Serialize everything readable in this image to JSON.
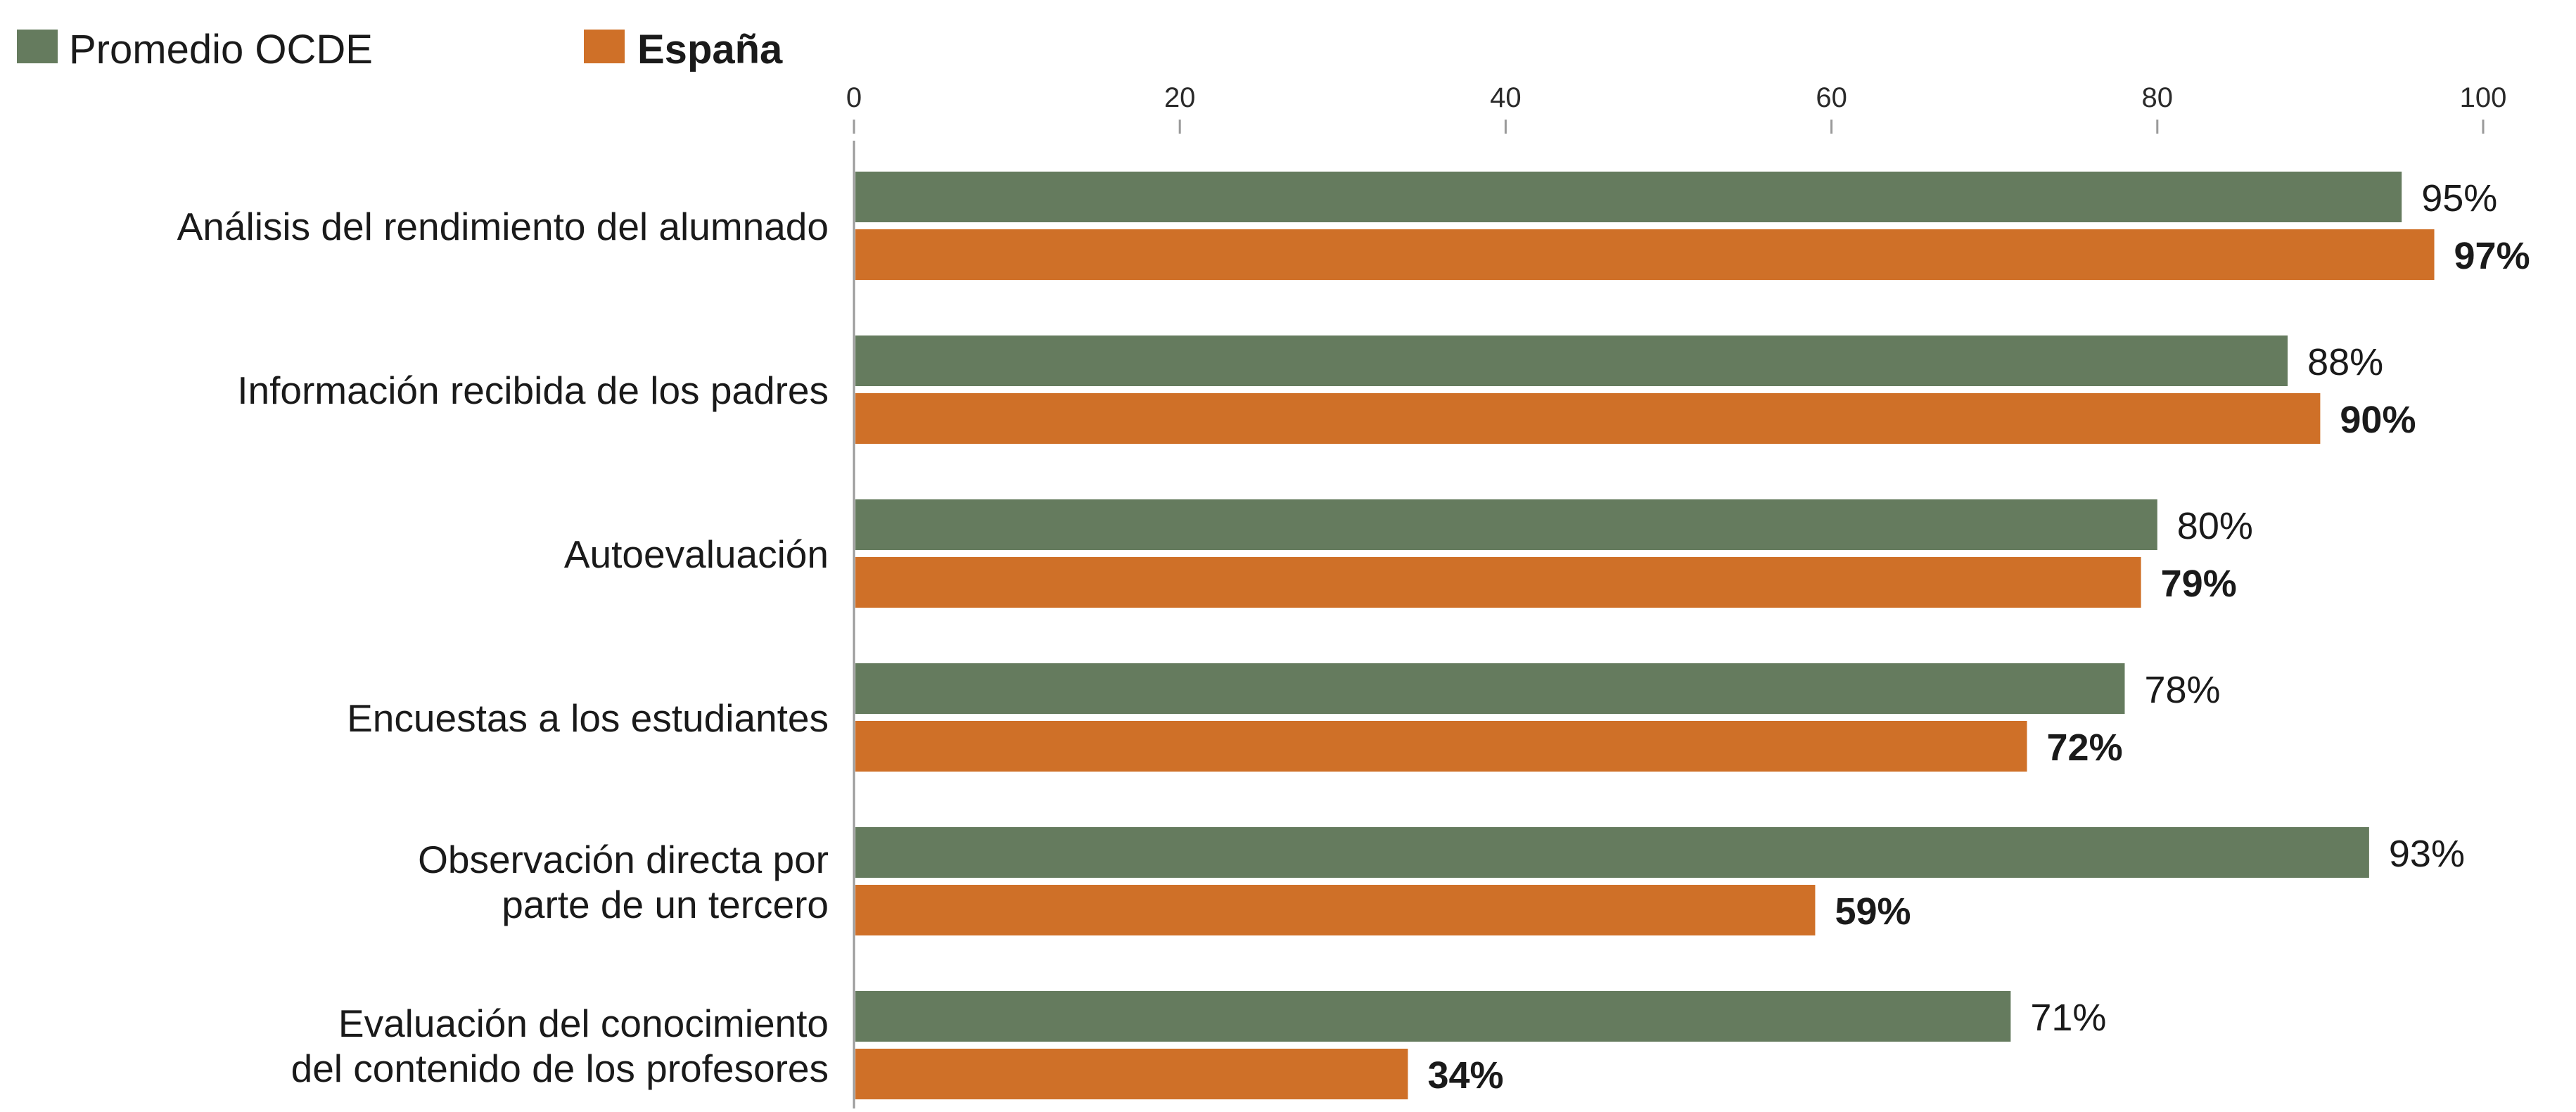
{
  "chart_data": {
    "type": "bar",
    "orientation": "horizontal",
    "categories": [
      "Análisis del rendimiento del alumnado",
      "Información recibida de los padres",
      "Autoevaluación",
      "Encuestas a los estudiantes",
      "Observación directa por\nparte de un tercero",
      "Evaluación del conocimiento\ndel contenido de los profesores"
    ],
    "series": [
      {
        "name": "Promedio OCDE",
        "color": "#657b5e",
        "values": [
          95,
          88,
          80,
          78,
          93,
          71
        ],
        "labels": [
          "95%",
          "88%",
          "80%",
          "78%",
          "93%",
          "71%"
        ]
      },
      {
        "name": "España",
        "color": "#cf7028",
        "values": [
          97,
          90,
          79,
          72,
          59,
          34
        ],
        "labels": [
          "97%",
          "90%",
          "79%",
          "72%",
          "59%",
          "34%"
        ]
      }
    ],
    "xlim": [
      0,
      100
    ],
    "x_ticks": [
      "0",
      "20",
      "40",
      "60",
      "80",
      "100"
    ],
    "title": "",
    "xlabel": "",
    "ylabel": "",
    "legend_position": "top-left",
    "grid": false
  }
}
